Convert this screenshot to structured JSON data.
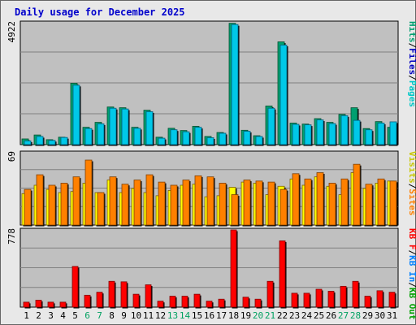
{
  "title": "Daily usage for December 2025",
  "colors": {
    "hits": "#00a070",
    "files": "#00c8e8",
    "pages": "#00e0e0",
    "visits": "#ffff00",
    "sites": "#ff8000",
    "kbout": "#ff3030",
    "kbin": "#0080ff",
    "kbf": "#ff0000"
  },
  "panels": {
    "top": {
      "max_label": "4922",
      "legend": [
        {
          "text": "Hits",
          "color": "#00a070"
        },
        {
          "text": "Files",
          "color": "#0000c0"
        },
        {
          "text": "Pages",
          "color": "#00c8c8"
        }
      ]
    },
    "middle": {
      "max_label": "69",
      "legend": [
        {
          "text": "Visits",
          "color": "#c8c800"
        },
        {
          "text": "Sites",
          "color": "#ff8000"
        }
      ]
    },
    "bottom": {
      "max_label": "778",
      "legend": [
        {
          "text": "KB F",
          "color": "#ff0000"
        },
        {
          "text": "KB In",
          "color": "#0080ff"
        },
        {
          "text": "KB Out",
          "color": "#00a000"
        }
      ]
    }
  },
  "chart_data": {
    "type": "bar",
    "categories": [
      "1",
      "2",
      "3",
      "4",
      "5",
      "6",
      "7",
      "8",
      "9",
      "10",
      "11",
      "12",
      "13",
      "14",
      "15",
      "16",
      "17",
      "18",
      "19",
      "20",
      "21",
      "22",
      "23",
      "24",
      "25",
      "26",
      "27",
      "28",
      "29",
      "30",
      "31"
    ],
    "weekend_days": [
      "6",
      "7",
      "13",
      "14",
      "20",
      "21",
      "27",
      "28"
    ],
    "series": [
      {
        "name": "Hits",
        "panel": "top",
        "values": [
          230,
          390,
          200,
          300,
          2480,
          700,
          900,
          1520,
          1490,
          700,
          1390,
          300,
          660,
          570,
          740,
          330,
          490,
          4900,
          580,
          360,
          1560,
          4150,
          870,
          830,
          1050,
          900,
          1220,
          1490,
          650,
          930,
          700
        ]
      },
      {
        "name": "Files",
        "panel": "top",
        "values": [
          150,
          330,
          170,
          290,
          2400,
          650,
          840,
          1470,
          1440,
          660,
          1330,
          260,
          600,
          520,
          700,
          280,
          460,
          4850,
          540,
          330,
          1470,
          4020,
          820,
          800,
          1000,
          850,
          1170,
          980,
          600,
          870,
          920
        ]
      },
      {
        "name": "Visits",
        "panel": "middle",
        "values": [
          30,
          38,
          34,
          31,
          32,
          40,
          31,
          43,
          31,
          35,
          31,
          28,
          33,
          38,
          39,
          27,
          28,
          36,
          41,
          40,
          29,
          37,
          44,
          38,
          46,
          37,
          29,
          50,
          35,
          40,
          42
        ]
      },
      {
        "name": "Sites",
        "panel": "middle",
        "values": [
          34,
          48,
          38,
          40,
          46,
          62,
          31,
          46,
          39,
          43,
          48,
          41,
          38,
          43,
          47,
          46,
          40,
          29,
          43,
          42,
          41,
          34,
          49,
          44,
          50,
          40,
          44,
          58,
          39,
          44,
          42
        ]
      },
      {
        "name": "KB F",
        "panel": "bottom",
        "values": [
          50,
          70,
          50,
          50,
          410,
          120,
          150,
          260,
          255,
          130,
          225,
          60,
          110,
          110,
          130,
          60,
          80,
          778,
          100,
          80,
          260,
          668,
          140,
          140,
          180,
          160,
          210,
          260,
          110,
          165,
          150
        ]
      }
    ],
    "ylim": {
      "top": [
        0,
        4922
      ],
      "middle": [
        0,
        69
      ],
      "bottom": [
        0,
        778
      ]
    },
    "grid": true
  }
}
